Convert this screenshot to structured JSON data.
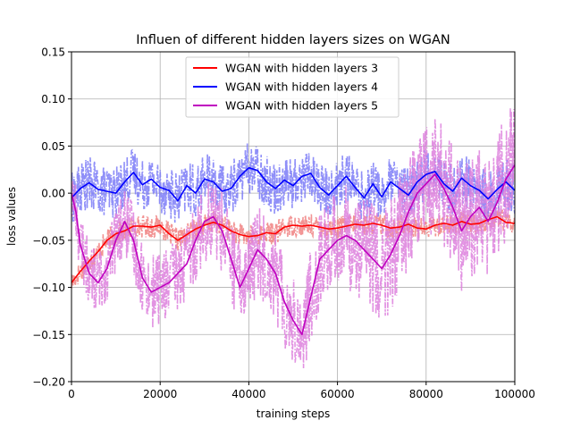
{
  "chart_data": {
    "type": "line",
    "title": "Influen of different hidden layers sizes on WGAN",
    "xlabel": "training steps",
    "ylabel": "loss values",
    "xlim": [
      0,
      100000
    ],
    "ylim": [
      -0.2,
      0.15
    ],
    "xticks": [
      0,
      20000,
      40000,
      60000,
      80000,
      100000
    ],
    "xtick_labels": [
      "0",
      "20000",
      "40000",
      "60000",
      "80000",
      "100000"
    ],
    "yticks": [
      -0.2,
      -0.15,
      -0.1,
      -0.05,
      0.0,
      0.05,
      0.1,
      0.15
    ],
    "ytick_labels": [
      "−0.20",
      "−0.15",
      "−0.10",
      "−0.05",
      "0.00",
      "0.05",
      "0.10",
      "0.15"
    ],
    "grid": true,
    "legend_position": "top-center",
    "colors": {
      "layers3": "#ff0000",
      "layers4": "#0000ff",
      "layers5": "#bf00bf",
      "layers3_raw": "#f08080",
      "layers4_raw": "#7b7bf7",
      "layers5_raw": "#dd80dd"
    },
    "series": [
      {
        "name": "WGAN with hidden layers 3",
        "color": "#ff0000",
        "raw_color": "#f08080",
        "noise": 0.012,
        "smoothed": [
          [
            0,
            -0.095
          ],
          [
            2000,
            -0.083
          ],
          [
            4000,
            -0.072
          ],
          [
            6000,
            -0.062
          ],
          [
            8000,
            -0.05
          ],
          [
            10000,
            -0.043
          ],
          [
            12000,
            -0.04
          ],
          [
            14000,
            -0.035
          ],
          [
            16000,
            -0.035
          ],
          [
            18000,
            -0.036
          ],
          [
            20000,
            -0.034
          ],
          [
            22000,
            -0.043
          ],
          [
            24000,
            -0.05
          ],
          [
            26000,
            -0.044
          ],
          [
            28000,
            -0.038
          ],
          [
            30000,
            -0.034
          ],
          [
            32000,
            -0.031
          ],
          [
            34000,
            -0.034
          ],
          [
            36000,
            -0.04
          ],
          [
            38000,
            -0.044
          ],
          [
            40000,
            -0.046
          ],
          [
            42000,
            -0.045
          ],
          [
            44000,
            -0.042
          ],
          [
            46000,
            -0.043
          ],
          [
            48000,
            -0.036
          ],
          [
            50000,
            -0.034
          ],
          [
            52000,
            -0.035
          ],
          [
            54000,
            -0.034
          ],
          [
            56000,
            -0.036
          ],
          [
            58000,
            -0.038
          ],
          [
            60000,
            -0.037
          ],
          [
            62000,
            -0.035
          ],
          [
            64000,
            -0.033
          ],
          [
            66000,
            -0.034
          ],
          [
            68000,
            -0.032
          ],
          [
            70000,
            -0.034
          ],
          [
            72000,
            -0.037
          ],
          [
            74000,
            -0.036
          ],
          [
            76000,
            -0.033
          ],
          [
            78000,
            -0.037
          ],
          [
            80000,
            -0.038
          ],
          [
            82000,
            -0.034
          ],
          [
            84000,
            -0.032
          ],
          [
            86000,
            -0.034
          ],
          [
            88000,
            -0.03
          ],
          [
            90000,
            -0.033
          ],
          [
            92000,
            -0.032
          ],
          [
            94000,
            -0.028
          ],
          [
            96000,
            -0.025
          ],
          [
            98000,
            -0.031
          ],
          [
            100000,
            -0.032
          ]
        ]
      },
      {
        "name": "WGAN with hidden layers 4",
        "color": "#0000ff",
        "raw_color": "#7b7bf7",
        "noise": 0.028,
        "smoothed": [
          [
            0,
            -0.005
          ],
          [
            2000,
            0.005
          ],
          [
            4000,
            0.011
          ],
          [
            6000,
            0.004
          ],
          [
            8000,
            0.002
          ],
          [
            10000,
            0.0
          ],
          [
            12000,
            0.012
          ],
          [
            14000,
            0.022
          ],
          [
            16000,
            0.009
          ],
          [
            18000,
            0.015
          ],
          [
            20000,
            0.006
          ],
          [
            22000,
            0.003
          ],
          [
            24000,
            -0.008
          ],
          [
            26000,
            0.008
          ],
          [
            28000,
            0.0
          ],
          [
            30000,
            0.015
          ],
          [
            32000,
            0.012
          ],
          [
            34000,
            0.002
          ],
          [
            36000,
            0.005
          ],
          [
            38000,
            0.018
          ],
          [
            40000,
            0.027
          ],
          [
            42000,
            0.024
          ],
          [
            44000,
            0.012
          ],
          [
            46000,
            0.005
          ],
          [
            48000,
            0.014
          ],
          [
            50000,
            0.008
          ],
          [
            52000,
            0.018
          ],
          [
            54000,
            0.021
          ],
          [
            56000,
            0.006
          ],
          [
            58000,
            -0.002
          ],
          [
            60000,
            0.008
          ],
          [
            62000,
            0.018
          ],
          [
            64000,
            0.006
          ],
          [
            66000,
            -0.005
          ],
          [
            68000,
            0.01
          ],
          [
            70000,
            -0.004
          ],
          [
            72000,
            0.012
          ],
          [
            74000,
            0.005
          ],
          [
            76000,
            -0.002
          ],
          [
            78000,
            0.012
          ],
          [
            80000,
            0.02
          ],
          [
            82000,
            0.023
          ],
          [
            84000,
            0.01
          ],
          [
            86000,
            0.002
          ],
          [
            88000,
            0.016
          ],
          [
            90000,
            0.008
          ],
          [
            92000,
            0.003
          ],
          [
            94000,
            -0.006
          ],
          [
            96000,
            0.004
          ],
          [
            98000,
            0.012
          ],
          [
            100000,
            0.003
          ]
        ]
      },
      {
        "name": "WGAN with hidden layers 5",
        "color": "#bf00bf",
        "raw_color": "#dd80dd",
        "noise": 0.045,
        "smoothed": [
          [
            0,
            0.0
          ],
          [
            1000,
            -0.02
          ],
          [
            2000,
            -0.055
          ],
          [
            4000,
            -0.085
          ],
          [
            6000,
            -0.095
          ],
          [
            8000,
            -0.08
          ],
          [
            10000,
            -0.05
          ],
          [
            12000,
            -0.03
          ],
          [
            14000,
            -0.05
          ],
          [
            16000,
            -0.09
          ],
          [
            18000,
            -0.105
          ],
          [
            20000,
            -0.1
          ],
          [
            22000,
            -0.095
          ],
          [
            24000,
            -0.085
          ],
          [
            26000,
            -0.075
          ],
          [
            28000,
            -0.05
          ],
          [
            30000,
            -0.03
          ],
          [
            32000,
            -0.025
          ],
          [
            34000,
            -0.04
          ],
          [
            36000,
            -0.07
          ],
          [
            38000,
            -0.1
          ],
          [
            40000,
            -0.08
          ],
          [
            42000,
            -0.06
          ],
          [
            44000,
            -0.07
          ],
          [
            46000,
            -0.085
          ],
          [
            48000,
            -0.115
          ],
          [
            50000,
            -0.135
          ],
          [
            52000,
            -0.15
          ],
          [
            54000,
            -0.11
          ],
          [
            56000,
            -0.07
          ],
          [
            58000,
            -0.06
          ],
          [
            60000,
            -0.05
          ],
          [
            62000,
            -0.045
          ],
          [
            64000,
            -0.05
          ],
          [
            66000,
            -0.06
          ],
          [
            68000,
            -0.07
          ],
          [
            70000,
            -0.08
          ],
          [
            72000,
            -0.065
          ],
          [
            74000,
            -0.045
          ],
          [
            76000,
            -0.02
          ],
          [
            78000,
            0.0
          ],
          [
            80000,
            0.01
          ],
          [
            82000,
            0.02
          ],
          [
            84000,
            0.005
          ],
          [
            86000,
            -0.015
          ],
          [
            88000,
            -0.04
          ],
          [
            90000,
            -0.025
          ],
          [
            92000,
            -0.015
          ],
          [
            94000,
            -0.03
          ],
          [
            96000,
            -0.01
          ],
          [
            98000,
            0.015
          ],
          [
            100000,
            0.03
          ]
        ]
      }
    ]
  }
}
